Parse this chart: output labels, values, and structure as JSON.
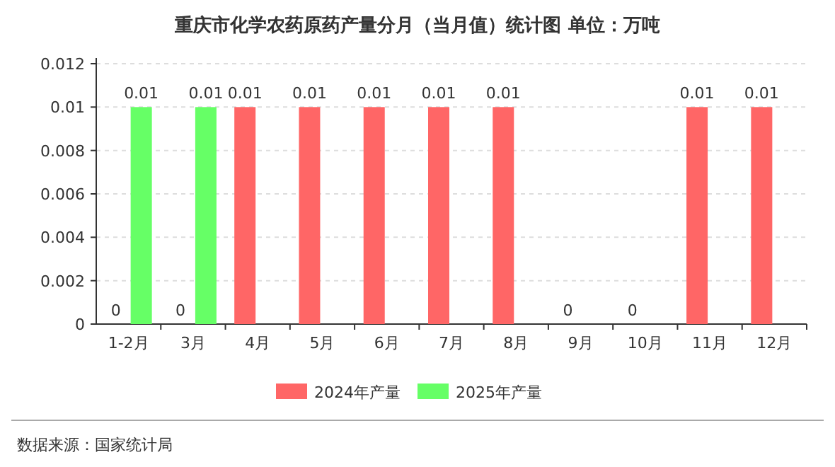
{
  "chart_data": {
    "type": "bar",
    "title": "重庆市化学农药原药产量分月（当月值）统计图 单位：万吨",
    "categories": [
      "1-2月",
      "3月",
      "4月",
      "5月",
      "6月",
      "7月",
      "8月",
      "9月",
      "10月",
      "11月",
      "12月"
    ],
    "series": [
      {
        "name": "2024年产量",
        "color": "#ff6666",
        "values": [
          0,
          0,
          0.01,
          0.01,
          0.01,
          0.01,
          0.01,
          0,
          0,
          0.01,
          0.01
        ]
      },
      {
        "name": "2025年产量",
        "color": "#66ff66",
        "values": [
          0.01,
          0.01,
          null,
          null,
          null,
          null,
          null,
          null,
          null,
          null,
          null
        ]
      }
    ],
    "ylim": [
      0,
      0.012
    ],
    "yticks": [
      0,
      0.002,
      0.004,
      0.006,
      0.008,
      0.01,
      0.012
    ],
    "grid": "y",
    "legend": "bottom",
    "data_labels": true,
    "annotations": [
      "数据来源：国家统计局"
    ]
  }
}
